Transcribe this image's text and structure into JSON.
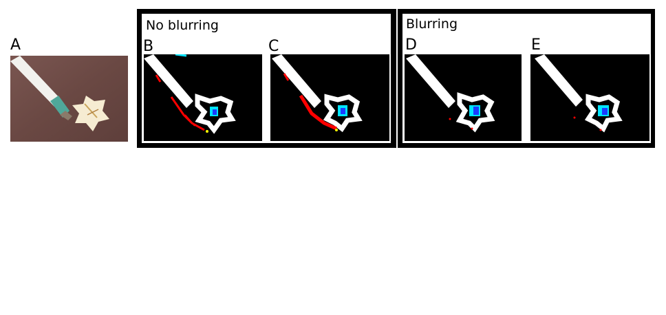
{
  "panels": {
    "a": {
      "label": "A"
    },
    "b": {
      "label": "B"
    },
    "c": {
      "label": "C"
    },
    "d": {
      "label": "D"
    },
    "e": {
      "label": "E"
    }
  },
  "groups": {
    "no_blur": {
      "title": "No blurring"
    },
    "blur": {
      "title": "Blurring"
    }
  },
  "colors": {
    "frame": "#000000",
    "segment": "#ffffff",
    "highlight_red": "#ff0000",
    "highlight_cyan": "#00e5ff",
    "highlight_blue": "#1a3cff",
    "background_photo": "#6b4a45"
  }
}
